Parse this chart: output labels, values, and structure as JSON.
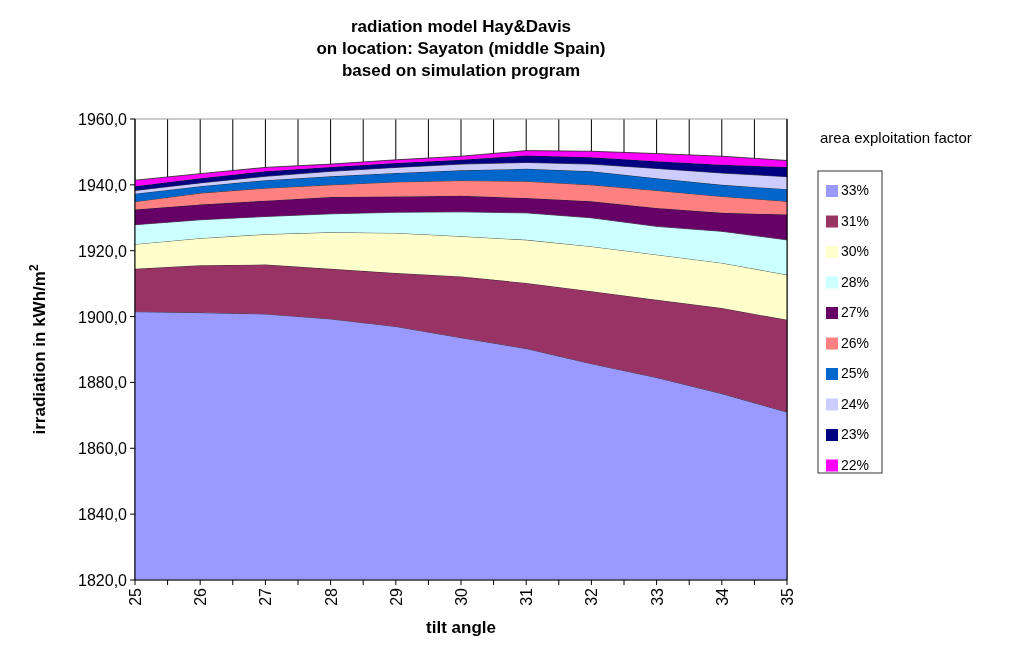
{
  "chart_data": {
    "type": "area",
    "title": "radiation model Hay&Davis\non location:  Sayaton (middle Spain)\nbased on simulation program",
    "xlabel": "tilt angle",
    "ylabel": "irradiation in kWh/m$^{2}$",
    "legend_title": "area exploitation factor",
    "legend": "right",
    "grid": "x",
    "x": [
      25,
      26,
      27,
      28,
      29,
      30,
      31,
      32,
      33,
      34,
      35
    ],
    "xlim": [
      25,
      35
    ],
    "xticks": [
      25,
      {
        "value": 25.5,
        "label": null
      },
      26,
      {
        "value": 26.5,
        "label": null
      },
      27,
      {
        "value": 27.5,
        "label": null
      },
      28,
      {
        "value": 28.5,
        "label": null
      },
      29,
      {
        "value": 29.5,
        "label": null
      },
      30,
      {
        "value": 30.5,
        "label": null
      },
      31,
      {
        "value": 31.5,
        "label": null
      },
      32,
      {
        "value": 32.5,
        "label": null
      },
      33,
      {
        "value": 33.5,
        "label": null
      },
      34,
      {
        "value": 34.5,
        "label": null
      },
      35
    ],
    "ylim": [
      1820,
      1960
    ],
    "yticks": [
      {
        "value": 1820,
        "label": "1820,0"
      },
      {
        "value": 1840,
        "label": "1840,0"
      },
      {
        "value": 1860,
        "label": "1860,0"
      },
      {
        "value": 1880,
        "label": "1880,0"
      },
      {
        "value": 1900,
        "label": "1900,0"
      },
      {
        "value": 1920,
        "label": "1920,0"
      },
      {
        "value": 1940,
        "label": "1940,0"
      },
      {
        "value": 1960,
        "label": "1960,0"
      }
    ],
    "series": [
      {
        "name": "33%",
        "color": "#9999ff",
        "values": [
          1901.5,
          1901.2,
          1900.8,
          1899.3,
          1897,
          1893.6,
          1890.3,
          1885.7,
          1881.5,
          1876.6,
          1871
        ]
      },
      {
        "name": "31%",
        "color": "#993366",
        "values": [
          1914.5,
          1915.6,
          1915.8,
          1914.5,
          1913.2,
          1912.2,
          1910.2,
          1907.7,
          1905.1,
          1902.6,
          1899
        ]
      },
      {
        "name": "30%",
        "color": "#ffffcc",
        "values": [
          1922,
          1923.8,
          1925,
          1925.6,
          1925.4,
          1924.4,
          1923.3,
          1921.3,
          1918.8,
          1916.3,
          1912.7
        ]
      },
      {
        "name": "28%",
        "color": "#ccffff",
        "values": [
          1927.9,
          1929.4,
          1930.4,
          1931.2,
          1931.7,
          1931.8,
          1931.5,
          1930,
          1927.4,
          1925.9,
          1923.3
        ]
      },
      {
        "name": "27%",
        "color": "#660066",
        "values": [
          1932.5,
          1934,
          1935.2,
          1936.3,
          1936.5,
          1936.7,
          1936,
          1935,
          1933,
          1931.5,
          1931
        ]
      },
      {
        "name": "26%",
        "color": "#ff8080",
        "values": [
          1934.9,
          1937.5,
          1939,
          1940,
          1940.9,
          1941.3,
          1941.1,
          1940,
          1938.3,
          1936.5,
          1935
        ]
      },
      {
        "name": "25%",
        "color": "#0066cc",
        "values": [
          1937.3,
          1939.6,
          1941.4,
          1942.6,
          1943.6,
          1944.4,
          1944.9,
          1944.1,
          1942,
          1940,
          1938.7
        ]
      },
      {
        "name": "24%",
        "color": "#ccccff",
        "values": [
          1938.3,
          1940.6,
          1942.6,
          1944.1,
          1945.3,
          1946.3,
          1946.8,
          1946.3,
          1945,
          1943.6,
          1942.5
        ]
      },
      {
        "name": "23%",
        "color": "#000080",
        "values": [
          1939.6,
          1942,
          1944.1,
          1945.4,
          1946.6,
          1947.6,
          1948.9,
          1948.4,
          1947.2,
          1946.1,
          1945.4
        ]
      },
      {
        "name": "22%",
        "color": "#ff00ff",
        "values": [
          1941.4,
          1943.4,
          1945.3,
          1946.3,
          1947.6,
          1948.7,
          1950.4,
          1950.2,
          1949.5,
          1948.7,
          1947.4
        ]
      }
    ]
  }
}
